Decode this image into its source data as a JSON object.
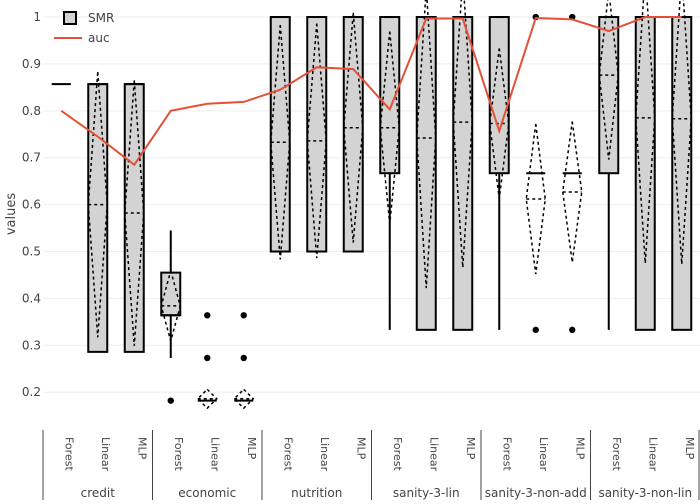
{
  "chart_data": {
    "type": "box",
    "ylabel": "values",
    "ylim": [
      0.145,
      1.015
    ],
    "yticks": [
      0.2,
      0.3,
      0.4,
      0.5,
      0.6,
      0.7,
      0.8,
      0.9,
      1
    ],
    "grid": true,
    "legend": {
      "placement": "top-left",
      "entries": [
        "SMR",
        "auc"
      ]
    },
    "colors": {
      "box_fill": "#d3d3d3",
      "box_line": "#000000",
      "auc_line": "#e45038",
      "grid": "#eeeeee"
    },
    "groups": [
      {
        "name": "credit",
        "models": [
          "Forest",
          "Linear",
          "MLP"
        ]
      },
      {
        "name": "economic",
        "models": [
          "Forest",
          "Linear",
          "MLP"
        ]
      },
      {
        "name": "nutrition",
        "models": [
          "Forest",
          "Linear",
          "MLP"
        ]
      },
      {
        "name": "sanity-3-lin",
        "models": [
          "Forest",
          "Linear",
          "MLP"
        ]
      },
      {
        "name": "sanity-3-non-add",
        "models": [
          "Forest",
          "Linear",
          "MLP"
        ]
      },
      {
        "name": "sanity-3-non-lin",
        "models": [
          "Forest",
          "Linear",
          "MLP"
        ]
      }
    ],
    "series": [
      {
        "name": "SMR",
        "kind": "box",
        "boxes": [
          {
            "group": "credit",
            "model": "Forest",
            "q1": 0.857,
            "median": 0.857,
            "q3": 0.857,
            "lowerfence": 0.857,
            "upperfence": 0.857,
            "mean": 0.857,
            "sd": 0,
            "outliers": []
          },
          {
            "group": "credit",
            "model": "Linear",
            "q1": 0.286,
            "median": 0.857,
            "q3": 0.857,
            "lowerfence": 0.286,
            "upperfence": 0.857,
            "mean": 0.6,
            "sd": 0.283,
            "outliers": []
          },
          {
            "group": "credit",
            "model": "MLP",
            "q1": 0.286,
            "median": 0.857,
            "q3": 0.857,
            "lowerfence": 0.286,
            "upperfence": 0.857,
            "mean": 0.582,
            "sd": 0.283,
            "outliers": []
          },
          {
            "group": "economic",
            "model": "Forest",
            "q1": 0.364,
            "median": 0.364,
            "q3": 0.455,
            "lowerfence": 0.273,
            "upperfence": 0.545,
            "mean": 0.384,
            "sd": 0.075,
            "outliers": [
              0.182
            ]
          },
          {
            "group": "economic",
            "model": "Linear",
            "q1": 0.182,
            "median": 0.182,
            "q3": 0.182,
            "lowerfence": 0.182,
            "upperfence": 0.182,
            "mean": 0.186,
            "sd": 0.02,
            "outliers": [
              0.364,
              0.273
            ]
          },
          {
            "group": "economic",
            "model": "MLP",
            "q1": 0.182,
            "median": 0.182,
            "q3": 0.182,
            "lowerfence": 0.182,
            "upperfence": 0.182,
            "mean": 0.186,
            "sd": 0.02,
            "outliers": [
              0.364,
              0.273
            ]
          },
          {
            "group": "nutrition",
            "model": "Forest",
            "q1": 0.5,
            "median": 1,
            "q3": 1,
            "lowerfence": 0.5,
            "upperfence": 1,
            "mean": 0.733,
            "sd": 0.25,
            "outliers": []
          },
          {
            "group": "nutrition",
            "model": "Linear",
            "q1": 0.5,
            "median": 1,
            "q3": 1,
            "lowerfence": 0.5,
            "upperfence": 1,
            "mean": 0.736,
            "sd": 0.25,
            "outliers": []
          },
          {
            "group": "nutrition",
            "model": "MLP",
            "q1": 0.5,
            "median": 1,
            "q3": 1,
            "lowerfence": 0.5,
            "upperfence": 1,
            "mean": 0.764,
            "sd": 0.245,
            "outliers": []
          },
          {
            "group": "sanity-3-lin",
            "model": "Forest",
            "q1": 0.667,
            "median": 1,
            "q3": 1,
            "lowerfence": 0.333,
            "upperfence": 1,
            "mean": 0.764,
            "sd": 0.205,
            "outliers": []
          },
          {
            "group": "sanity-3-lin",
            "model": "Linear",
            "q1": 0.333,
            "median": 1,
            "q3": 1,
            "lowerfence": 0.333,
            "upperfence": 1,
            "mean": 0.742,
            "sd": 0.32,
            "outliers": []
          },
          {
            "group": "sanity-3-lin",
            "model": "MLP",
            "q1": 0.333,
            "median": 1,
            "q3": 1,
            "lowerfence": 0.333,
            "upperfence": 1,
            "mean": 0.776,
            "sd": 0.31,
            "outliers": []
          },
          {
            "group": "sanity-3-non-add",
            "model": "Forest",
            "q1": 0.667,
            "median": 1,
            "q3": 1,
            "lowerfence": 0.333,
            "upperfence": 1,
            "mean": 0.773,
            "sd": 0.16,
            "outliers": []
          },
          {
            "group": "sanity-3-non-add",
            "model": "Linear",
            "q1": 0.667,
            "median": 0.667,
            "q3": 0.667,
            "lowerfence": 0.667,
            "upperfence": 0.667,
            "mean": 0.612,
            "sd": 0.16,
            "outliers": [
              1,
              0.333
            ]
          },
          {
            "group": "sanity-3-non-add",
            "model": "MLP",
            "q1": 0.667,
            "median": 0.667,
            "q3": 0.667,
            "lowerfence": 0.667,
            "upperfence": 0.667,
            "mean": 0.627,
            "sd": 0.15,
            "outliers": [
              1,
              0.333
            ]
          },
          {
            "group": "sanity-3-non-lin",
            "model": "Forest",
            "q1": 0.667,
            "median": 1,
            "q3": 1,
            "lowerfence": 0.333,
            "upperfence": 1,
            "mean": 0.876,
            "sd": 0.18,
            "outliers": []
          },
          {
            "group": "sanity-3-non-lin",
            "model": "Linear",
            "q1": 0.333,
            "median": 1,
            "q3": 1,
            "lowerfence": 0.333,
            "upperfence": 1,
            "mean": 0.785,
            "sd": 0.31,
            "outliers": []
          },
          {
            "group": "sanity-3-non-lin",
            "model": "MLP",
            "q1": 0.333,
            "median": 1,
            "q3": 1,
            "lowerfence": 0.333,
            "upperfence": 1,
            "mean": 0.783,
            "sd": 0.31,
            "outliers": []
          }
        ]
      },
      {
        "name": "auc",
        "kind": "line",
        "values": [
          0.8,
          0.745,
          0.685,
          0.8,
          0.815,
          0.819,
          0.845,
          0.893,
          0.889,
          0.803,
          0.997,
          0.997,
          0.757,
          0.998,
          0.995,
          0.97,
          1.0,
          1.0
        ]
      }
    ]
  }
}
